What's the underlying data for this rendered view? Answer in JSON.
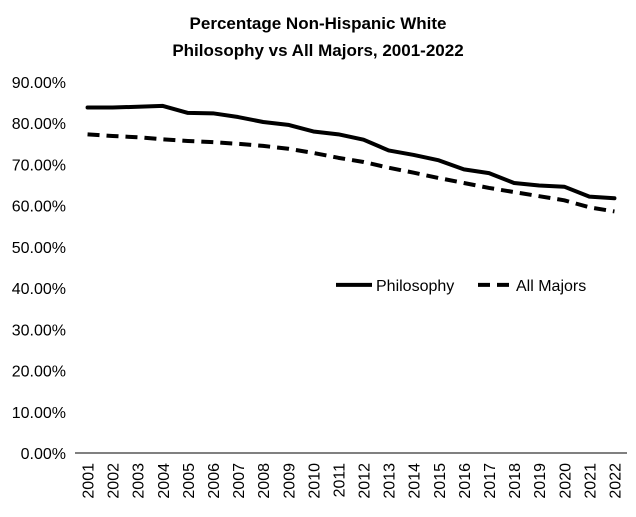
{
  "chart_data": {
    "type": "line",
    "title": "Percentage Non-Hispanic  White",
    "subtitle": "Philosophy vs All Majors, 2001-2022",
    "xlabel": "",
    "ylabel": "",
    "categories": [
      "2001",
      "2002",
      "2003",
      "2004",
      "2005",
      "2006",
      "2007",
      "2008",
      "2009",
      "2010",
      "2011",
      "2012",
      "2013",
      "2014",
      "2015",
      "2016",
      "2017",
      "2018",
      "2019",
      "2020",
      "2021",
      "2022"
    ],
    "ylim": [
      0,
      90
    ],
    "yticks": [
      0,
      10,
      20,
      30,
      40,
      50,
      60,
      70,
      80,
      90
    ],
    "ytick_labels": [
      "0.00%",
      "10.00%",
      "20.00%",
      "30.00%",
      "40.00%",
      "50.00%",
      "60.00%",
      "70.00%",
      "80.00%",
      "90.00%"
    ],
    "grid": false,
    "legend_position": "center-right",
    "series": [
      {
        "name": "Philosophy",
        "style": "solid",
        "color": "#000000",
        "values": [
          83.8,
          83.8,
          84.0,
          84.2,
          82.5,
          82.4,
          81.5,
          80.3,
          79.6,
          78.0,
          77.3,
          76.0,
          73.4,
          72.3,
          71.0,
          68.8,
          67.9,
          65.5,
          64.9,
          64.6,
          62.2,
          61.8
        ]
      },
      {
        "name": "All Majors",
        "style": "dashed",
        "color": "#000000",
        "values": [
          77.3,
          76.9,
          76.6,
          76.1,
          75.7,
          75.4,
          75.0,
          74.5,
          73.8,
          72.8,
          71.6,
          70.6,
          69.2,
          68.0,
          66.7,
          65.5,
          64.3,
          63.3,
          62.3,
          61.3,
          59.6,
          58.6
        ]
      }
    ]
  },
  "style": {
    "background": "#ffffff",
    "axis_color": "#000000",
    "line_color": "#000000"
  }
}
